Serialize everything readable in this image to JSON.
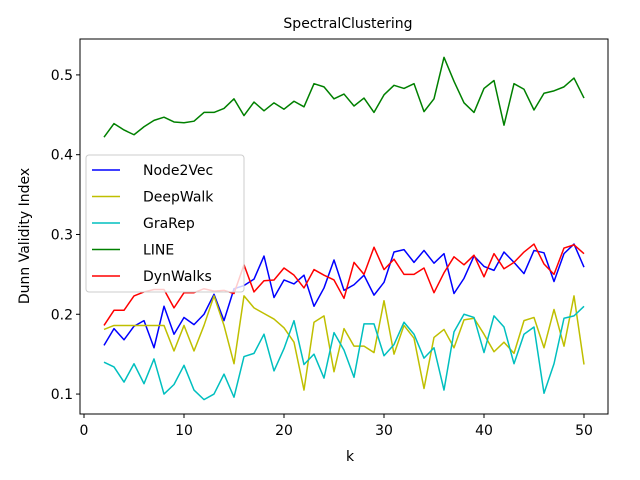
{
  "chart_data": {
    "type": "line",
    "title": "SpectralClustering",
    "xlabel": "k",
    "ylabel": "Dunn Validity Index",
    "xlim": [
      -0.4,
      52.4
    ],
    "ylim": [
      0.075,
      0.545
    ],
    "xticks": [
      0,
      10,
      20,
      30,
      40,
      50
    ],
    "yticks": [
      0.1,
      0.2,
      0.3,
      0.4,
      0.5
    ],
    "grid": false,
    "legend_position": "center-left",
    "x": [
      2,
      3,
      4,
      5,
      6,
      7,
      8,
      9,
      10,
      11,
      12,
      13,
      14,
      15,
      16,
      17,
      18,
      19,
      20,
      21,
      22,
      23,
      24,
      25,
      26,
      27,
      28,
      29,
      30,
      31,
      32,
      33,
      34,
      35,
      36,
      37,
      38,
      39,
      40,
      41,
      42,
      43,
      44,
      45,
      46,
      47,
      48,
      49,
      50
    ],
    "series": [
      {
        "name": "Node2Vec",
        "color": "#0000ff",
        "values": [
          0.161,
          0.182,
          0.168,
          0.185,
          0.192,
          0.158,
          0.21,
          0.175,
          0.196,
          0.187,
          0.2,
          0.225,
          0.192,
          0.232,
          0.236,
          0.244,
          0.273,
          0.221,
          0.243,
          0.238,
          0.249,
          0.21,
          0.233,
          0.268,
          0.23,
          0.237,
          0.249,
          0.224,
          0.24,
          0.278,
          0.281,
          0.265,
          0.28,
          0.264,
          0.276,
          0.226,
          0.245,
          0.273,
          0.26,
          0.255,
          0.278,
          0.265,
          0.251,
          0.28,
          0.277,
          0.241,
          0.276,
          0.288,
          0.259
        ]
      },
      {
        "name": "DeepWalk",
        "color": "#bfbf00",
        "values": [
          0.181,
          0.186,
          0.186,
          0.186,
          0.186,
          0.186,
          0.186,
          0.154,
          0.186,
          0.154,
          0.186,
          0.223,
          0.186,
          0.138,
          0.223,
          0.208,
          0.201,
          0.194,
          0.183,
          0.165,
          0.105,
          0.19,
          0.198,
          0.128,
          0.182,
          0.16,
          0.16,
          0.152,
          0.217,
          0.15,
          0.186,
          0.17,
          0.107,
          0.171,
          0.181,
          0.158,
          0.193,
          0.195,
          0.175,
          0.153,
          0.165,
          0.151,
          0.192,
          0.196,
          0.158,
          0.206,
          0.16,
          0.223,
          0.137
        ]
      },
      {
        "name": "GraRep",
        "color": "#00bfbf",
        "values": [
          0.14,
          0.134,
          0.115,
          0.138,
          0.113,
          0.144,
          0.1,
          0.112,
          0.136,
          0.105,
          0.093,
          0.1,
          0.125,
          0.096,
          0.147,
          0.151,
          0.175,
          0.129,
          0.157,
          0.192,
          0.137,
          0.15,
          0.12,
          0.177,
          0.155,
          0.121,
          0.188,
          0.188,
          0.148,
          0.162,
          0.19,
          0.175,
          0.145,
          0.158,
          0.105,
          0.178,
          0.2,
          0.196,
          0.152,
          0.198,
          0.184,
          0.138,
          0.175,
          0.184,
          0.101,
          0.138,
          0.195,
          0.198,
          0.21
        ]
      },
      {
        "name": "LINE",
        "color": "#008000",
        "values": [
          0.422,
          0.439,
          0.431,
          0.425,
          0.435,
          0.443,
          0.447,
          0.441,
          0.44,
          0.442,
          0.453,
          0.453,
          0.458,
          0.47,
          0.449,
          0.466,
          0.455,
          0.465,
          0.457,
          0.467,
          0.46,
          0.489,
          0.485,
          0.47,
          0.476,
          0.461,
          0.471,
          0.453,
          0.475,
          0.487,
          0.483,
          0.489,
          0.454,
          0.47,
          0.522,
          0.492,
          0.465,
          0.453,
          0.483,
          0.493,
          0.437,
          0.489,
          0.482,
          0.456,
          0.477,
          0.48,
          0.485,
          0.496,
          0.471
        ]
      },
      {
        "name": "DynWalks",
        "color": "#ff0000",
        "values": [
          0.186,
          0.205,
          0.205,
          0.223,
          0.228,
          0.231,
          0.231,
          0.208,
          0.227,
          0.227,
          0.232,
          0.229,
          0.23,
          0.226,
          0.262,
          0.228,
          0.242,
          0.243,
          0.258,
          0.249,
          0.233,
          0.256,
          0.249,
          0.243,
          0.22,
          0.265,
          0.25,
          0.284,
          0.256,
          0.269,
          0.25,
          0.25,
          0.258,
          0.227,
          0.252,
          0.272,
          0.262,
          0.274,
          0.247,
          0.276,
          0.257,
          0.265,
          0.278,
          0.288,
          0.263,
          0.25,
          0.283,
          0.287,
          0.276
        ]
      }
    ]
  }
}
